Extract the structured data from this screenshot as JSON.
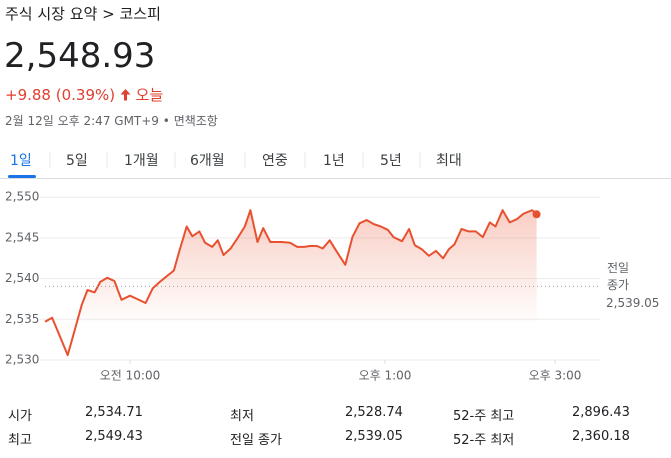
{
  "breadcrumb": {
    "path": "주식 시장 요약",
    "separator": ">",
    "current": "코스피"
  },
  "price": "2,548.93",
  "change": "+9.88 (0.39%)",
  "change_period": "오늘",
  "timestamp": "2월 12일 오후 2:47 GMT+9",
  "timestamp_separator": "•",
  "disclaimer": "면책조항",
  "tabs": [
    "1일",
    "5일",
    "1개월",
    "6개월",
    "연중",
    "1년",
    "5년",
    "최대"
  ],
  "selected_tab": 0,
  "chart_data": {
    "type": "line",
    "color": "#e8512f",
    "x": [
      540,
      545,
      551,
      556,
      561,
      566,
      570,
      575,
      579,
      584,
      589,
      594,
      600,
      605,
      611,
      616,
      621,
      626,
      631,
      635,
      640,
      644,
      649,
      653,
      658,
      662,
      666,
      671,
      676,
      681,
      685,
      690,
      694,
      699,
      703,
      707,
      713,
      718,
      723,
      727,
      732,
      736,
      741,
      746,
      752,
      757,
      762,
      767,
      772,
      777,
      782,
      786,
      792,
      797,
      801,
      806,
      811,
      816,
      821,
      825,
      829,
      834,
      839,
      844,
      849,
      854,
      858,
      863,
      868,
      873,
      878,
      884,
      887
    ],
    "values": [
      2534.7,
      2535.2,
      2532.7,
      2530.6,
      2533.7,
      2536.8,
      2538.6,
      2538.3,
      2539.6,
      2540.1,
      2539.7,
      2537.4,
      2537.9,
      2537.5,
      2537.0,
      2538.8,
      2539.6,
      2540.3,
      2541.0,
      2543.5,
      2546.4,
      2545.2,
      2545.8,
      2544.4,
      2543.9,
      2544.7,
      2542.9,
      2543.7,
      2545.0,
      2546.4,
      2548.4,
      2544.5,
      2546.2,
      2544.5,
      2544.5,
      2544.5,
      2544.4,
      2543.9,
      2543.9,
      2544.0,
      2544.0,
      2543.7,
      2544.7,
      2543.3,
      2541.7,
      2545.1,
      2546.8,
      2547.2,
      2546.7,
      2546.4,
      2546.0,
      2545.1,
      2544.6,
      2546.1,
      2544.1,
      2543.6,
      2542.8,
      2543.4,
      2542.5,
      2543.6,
      2544.2,
      2546.1,
      2545.8,
      2545.8,
      2545.1,
      2546.9,
      2546.4,
      2548.4,
      2546.9,
      2547.3,
      2548.0,
      2548.4,
      2547.9
    ],
    "xlim": [
      540,
      930
    ],
    "xticks": [
      {
        "value": 600,
        "label": "오전 10:00"
      },
      {
        "value": 780,
        "label": "오후 1:00"
      },
      {
        "value": 900,
        "label": "오후 3:00"
      }
    ],
    "ylim": [
      2530,
      2551.5
    ],
    "yticks": [
      {
        "value": 2530,
        "label": "2,530"
      },
      {
        "value": 2535,
        "label": "2,535"
      },
      {
        "value": 2540,
        "label": "2,540"
      },
      {
        "value": 2545,
        "label": "2,545"
      },
      {
        "value": 2550,
        "label": "2,550"
      }
    ],
    "grid": true,
    "reference_line": {
      "value": 2539.05,
      "label": [
        "전일",
        "종가"
      ],
      "value_label": "2,539.05"
    }
  },
  "stats": [
    [
      {
        "label": "시가",
        "value": "2,534.71"
      },
      {
        "label": "최저",
        "value": "2,528.74"
      },
      {
        "label": "52-주 최고",
        "value": "2,896.43"
      }
    ],
    [
      {
        "label": "최고",
        "value": "2,549.43"
      },
      {
        "label": "전일 종가",
        "value": "2,539.05"
      },
      {
        "label": "52-주 최저",
        "value": "2,360.18"
      }
    ]
  ]
}
